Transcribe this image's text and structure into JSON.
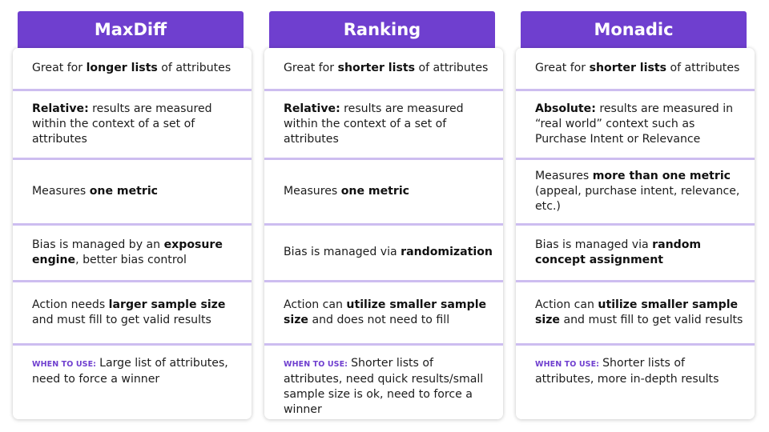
{
  "colors": {
    "header_bg": "#6f3fcf",
    "separator": "#cdbdf0",
    "when_label": "#6f3fcf"
  },
  "columns": [
    {
      "title": "MaxDiff",
      "rows": [
        {
          "parts": [
            {
              "t": "Great for "
            },
            {
              "t": "longer lists",
              "b": true
            },
            {
              "t": " of attributes"
            }
          ]
        },
        {
          "parts": [
            {
              "t": "Relative:",
              "b": true
            },
            {
              "t": " results are measured within the context of a set of attributes"
            }
          ]
        },
        {
          "parts": [
            {
              "t": "Measures "
            },
            {
              "t": "one metric",
              "b": true
            }
          ]
        },
        {
          "parts": [
            {
              "t": "Bias is managed by an "
            },
            {
              "t": "exposure engine",
              "b": true
            },
            {
              "t": ", better bias control"
            }
          ]
        },
        {
          "parts": [
            {
              "t": "Action needs "
            },
            {
              "t": "larger sample size",
              "b": true
            },
            {
              "t": " and must fill to get valid results"
            }
          ]
        },
        {
          "label": "WHEN TO USE:",
          "parts": [
            {
              "t": "Large list of attributes, need to force a winner"
            }
          ]
        }
      ]
    },
    {
      "title": "Ranking",
      "rows": [
        {
          "parts": [
            {
              "t": "Great for "
            },
            {
              "t": "shorter lists",
              "b": true
            },
            {
              "t": " of attributes"
            }
          ]
        },
        {
          "parts": [
            {
              "t": "Relative:",
              "b": true
            },
            {
              "t": " results are measured within the context of a set of attributes"
            }
          ]
        },
        {
          "parts": [
            {
              "t": "Measures "
            },
            {
              "t": "one metric",
              "b": true
            }
          ]
        },
        {
          "parts": [
            {
              "t": "Bias is managed via "
            },
            {
              "t": "randomization",
              "b": true
            }
          ]
        },
        {
          "parts": [
            {
              "t": "Action can "
            },
            {
              "t": "utilize smaller sample size",
              "b": true
            },
            {
              "t": " and does not need to fill"
            }
          ]
        },
        {
          "label": "WHEN TO USE:",
          "parts": [
            {
              "t": "Shorter lists of attributes, need quick results/small sample size is ok, need to force a winner"
            }
          ]
        }
      ]
    },
    {
      "title": "Monadic",
      "rows": [
        {
          "parts": [
            {
              "t": "Great for "
            },
            {
              "t": "shorter lists",
              "b": true
            },
            {
              "t": " of attributes"
            }
          ]
        },
        {
          "parts": [
            {
              "t": "Absolute:",
              "b": true
            },
            {
              "t": " results are measured in “real world” context such as Purchase Intent or Relevance"
            }
          ]
        },
        {
          "parts": [
            {
              "t": "Measures "
            },
            {
              "t": "more than one metric",
              "b": true
            },
            {
              "t": " (appeal, purchase intent, relevance, etc.)"
            }
          ]
        },
        {
          "parts": [
            {
              "t": "Bias is managed via "
            },
            {
              "t": "random concept assignment",
              "b": true
            }
          ]
        },
        {
          "parts": [
            {
              "t": "Action can "
            },
            {
              "t": "utilize smaller sample size",
              "b": true
            },
            {
              "t": " and must fill to get valid results"
            }
          ]
        },
        {
          "label": "WHEN TO USE:",
          "parts": [
            {
              "t": "Shorter lists of attributes, more in-depth results"
            }
          ]
        }
      ]
    }
  ]
}
